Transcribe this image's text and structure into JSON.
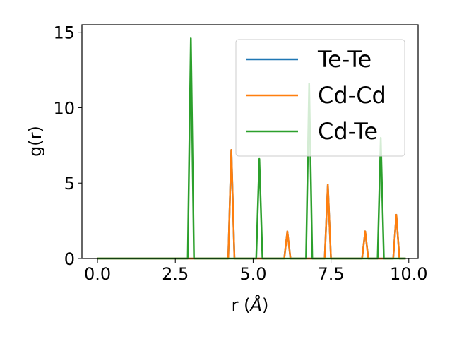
{
  "chart_data": {
    "type": "line",
    "xlabel_prefix": "r (",
    "xlabel_unit": "Å",
    "xlabel_suffix": ")",
    "ylabel": "g(r)",
    "xlim": [
      -0.5,
      10.3
    ],
    "ylim": [
      0,
      15.5
    ],
    "xticks": [
      0.0,
      2.5,
      5.0,
      7.5,
      10.0
    ],
    "xtick_labels": [
      "0.0",
      "2.5",
      "5.0",
      "7.5",
      "10.0"
    ],
    "yticks": [
      0,
      5,
      10,
      15
    ],
    "ytick_labels": [
      "0",
      "5",
      "10",
      "15"
    ],
    "grid": false,
    "legend_position": "upper right",
    "series": [
      {
        "name": "Te-Te",
        "color": "#1f77b4",
        "x": [
          0.0,
          4.2,
          4.3,
          4.4,
          6.0,
          6.1,
          6.2,
          7.3,
          7.4,
          7.5,
          8.5,
          8.6,
          8.7,
          9.5,
          9.6,
          9.7,
          9.9
        ],
        "y": [
          0,
          0,
          7.2,
          0,
          0,
          1.8,
          0,
          0,
          4.9,
          0,
          0,
          1.8,
          0,
          0,
          2.9,
          0,
          0
        ]
      },
      {
        "name": "Cd-Cd",
        "color": "#ff7f0e",
        "x": [
          0.0,
          4.2,
          4.3,
          4.4,
          6.0,
          6.1,
          6.2,
          7.3,
          7.4,
          7.5,
          8.5,
          8.6,
          8.7,
          9.5,
          9.6,
          9.7,
          9.9
        ],
        "y": [
          0,
          0,
          7.2,
          0,
          0,
          1.8,
          0,
          0,
          4.9,
          0,
          0,
          1.8,
          0,
          0,
          2.9,
          0,
          0
        ]
      },
      {
        "name": "Cd-Te",
        "color": "#2ca02c",
        "x": [
          0.0,
          2.9,
          3.0,
          3.1,
          5.1,
          5.2,
          5.3,
          6.7,
          6.8,
          6.9,
          9.0,
          9.1,
          9.2,
          9.9
        ],
        "y": [
          0,
          0,
          14.6,
          0,
          0,
          6.6,
          0,
          0,
          11.6,
          0,
          0,
          8.0,
          0,
          0
        ]
      }
    ]
  }
}
